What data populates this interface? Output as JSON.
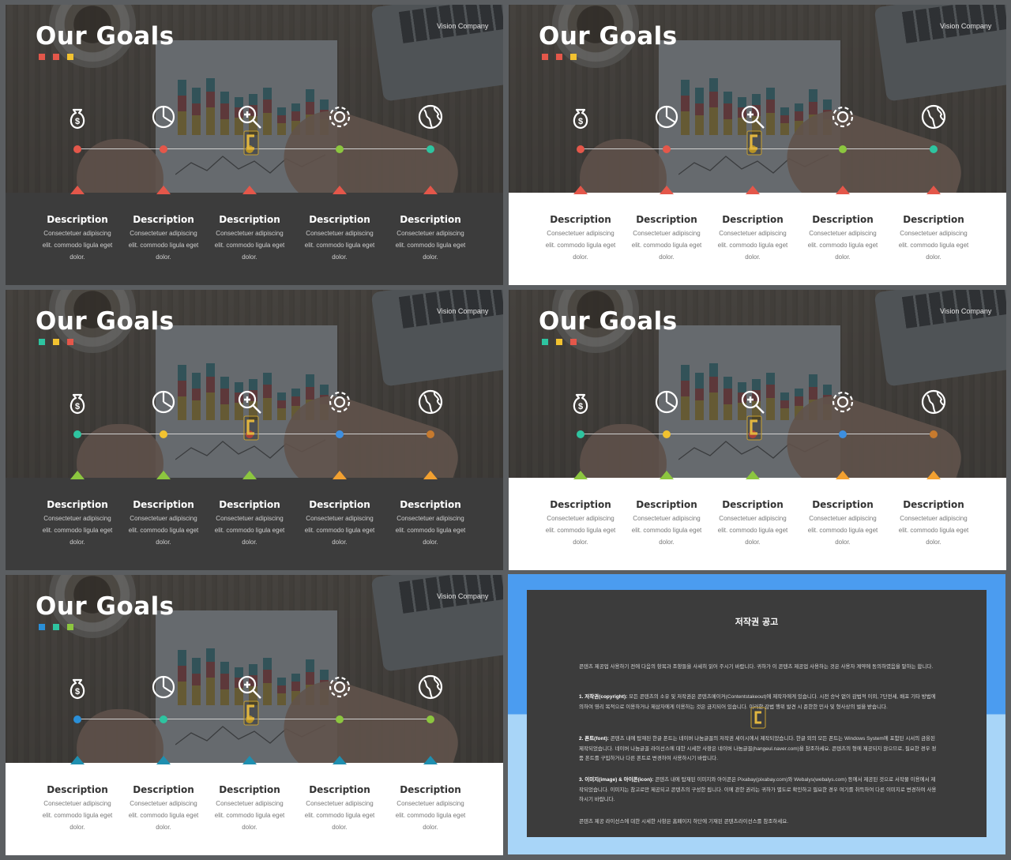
{
  "slide": {
    "title": "Our Goals",
    "company": "Vision Company",
    "columns": [
      {
        "heading": "Description",
        "line1": "Consectetuer adipiscing",
        "line2": "elit. commodo ligula eget",
        "line3": "dolor."
      },
      {
        "heading": "Description",
        "line1": "Consectetuer adipiscing",
        "line2": "elit. commodo ligula eget",
        "line3": "dolor."
      },
      {
        "heading": "Description",
        "line1": "Consectetuer adipiscing",
        "line2": "elit. commodo ligula eget",
        "line3": "dolor."
      },
      {
        "heading": "Description",
        "line1": "Consectetuer adipiscing",
        "line2": "elit. commodo ligula eget",
        "line3": "dolor."
      },
      {
        "heading": "Description",
        "line1": "Consectetuer adipiscing",
        "line2": "elit. commodo ligula eget",
        "line3": "dolor."
      }
    ],
    "icons": [
      "money-bag-icon",
      "pie-chart-icon",
      "magnifier-plus-icon",
      "gear-icon",
      "globe-icon"
    ]
  },
  "variants": [
    {
      "name": "dark-warm",
      "panel": "dark",
      "squares": [
        "#e4574a",
        "#e4574a",
        "#f2c230"
      ],
      "dots": [
        "#e4574a",
        "#e4574a",
        "#f2c230",
        "#8cc63f",
        "#2ec4a0"
      ],
      "triangles": [
        "#e4574a",
        "#e4574a",
        "#e4574a",
        "#e4574a",
        "#e4574a"
      ]
    },
    {
      "name": "light-warm",
      "panel": "light",
      "squares": [
        "#e4574a",
        "#e4574a",
        "#f2c230"
      ],
      "dots": [
        "#e4574a",
        "#e4574a",
        "#f2c230",
        "#8cc63f",
        "#2ec4a0"
      ],
      "triangles": [
        "#e4574a",
        "#e4574a",
        "#e4574a",
        "#e4574a",
        "#e4574a"
      ]
    },
    {
      "name": "dark-multi",
      "panel": "dark",
      "squares": [
        "#2ec4a0",
        "#f2c230",
        "#e4574a"
      ],
      "dots": [
        "#2ec4a0",
        "#f2c230",
        "#e4574a",
        "#3d8fe0",
        "#c77a2e"
      ],
      "triangles": [
        "#8cc63f",
        "#8cc63f",
        "#8cc63f",
        "#f2a030",
        "#f2a030"
      ]
    },
    {
      "name": "light-multi",
      "panel": "light",
      "squares": [
        "#2ec4a0",
        "#f2c230",
        "#e4574a"
      ],
      "dots": [
        "#2ec4a0",
        "#f2c230",
        "#e4574a",
        "#3d8fe0",
        "#c77a2e"
      ],
      "triangles": [
        "#8cc63f",
        "#8cc63f",
        "#8cc63f",
        "#f2a030",
        "#f2a030"
      ]
    },
    {
      "name": "light-cool",
      "panel": "light",
      "squares": [
        "#2a8fd8",
        "#2ec4a0",
        "#8cc63f"
      ],
      "dots": [
        "#2a8fd8",
        "#2ec4a0",
        "#f2c230",
        "#8cc63f",
        "#8cc63f"
      ],
      "triangles": [
        "#1f8fb0",
        "#1f8fb0",
        "#1f8fb0",
        "#1f8fb0",
        "#1f8fb0"
      ]
    }
  ],
  "notice": {
    "title": "저작권 공고",
    "intro": "콘텐츠 제공업 사용하기 전에 다음의 항목과 조항들을 사세히 읽어 주시기 바랍니다. 귀하가 이 콘텐츠 제공업 사용하는 것은 사용자 계약에 동의하였음을 말하는 합니다.",
    "p1_label": "1. 저작권(copyright):",
    "p1": "모든 콘텐츠의 소유 및 저작권은 콘텐츠메이커(Contentstakeout)에 제작자에게 있습니다. 시전 승낙 없이 감법적 이외, 7단전세, 배포 기타 방법에 의하여 영리 목적으로 이용하거나 제삼자에게 이용하는 것은 금지되어 있습니다. 이러한 감법 행위 발견 시 준한한 민사 및 형사상의 벌을 받습니다.",
    "p2_label": "2. 폰트(font):",
    "p2": "콘텐츠 내에 탑재된 한글 폰트는 네이버 나눔글꼴의 저작권 세이시에서 제작되었습니다. 한글 외의 모든 폰트는 Windows System에 포함된 시서의 금융된 제작되었습니다. 네이버 나눔글꼴 라이선스에 대한 시세한 사항은 네이버 나눔글꼴(hangeul.naver.com)을 참조하세요. 콘텐츠의 형에 제공되지 않으므로, 필요한 경우 정품 폰트를 구입하거나 다른 폰트로 변경하여 사용하시기 바랍니다.",
    "p3_label": "3. 이미지(image) & 아이콘(icon):",
    "p3": "콘텐츠 내에 탑재된 이미지와 아이콘은 Pixabay(pixabay.com)와 Webalys(webalys.com) 등에서 제공된 것으로 서작물 이용에서 제작되었습니다. 이미지는 참고로만 제공되고 콘텐츠의 구성한 됩니다. 이에 관한 권리는 귀하가 별도로 확인하고 필요한 경우 여기를 취득하여 다른 이미지로 변경하여 사용하시기 바랍니다.",
    "outro": "콘텐츠 제공 라이선스에 대한 시세한 사항은 홈페이지 하단에 기재된 콘텐츠라이선스를 참조하세요."
  }
}
